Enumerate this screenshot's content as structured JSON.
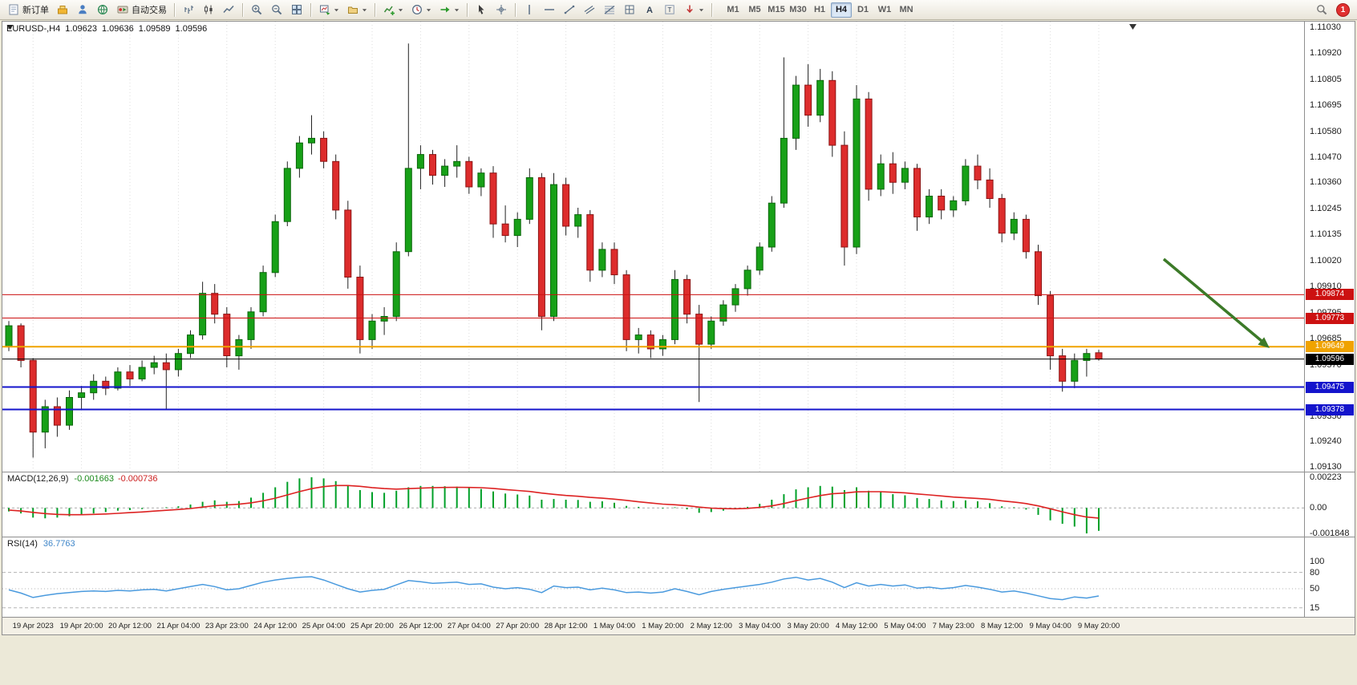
{
  "toolbar": {
    "new_order_label": "新订单",
    "autotrade_label": "自动交易",
    "text_tool_glyph": "A",
    "label_tool_glyph": "T",
    "notification_count": "1",
    "timeframes": [
      {
        "label": "M1",
        "active": false
      },
      {
        "label": "M5",
        "active": false
      },
      {
        "label": "M15",
        "active": false
      },
      {
        "label": "M30",
        "active": false
      },
      {
        "label": "H1",
        "active": false
      },
      {
        "label": "H4",
        "active": true
      },
      {
        "label": "D1",
        "active": false
      },
      {
        "label": "W1",
        "active": false
      },
      {
        "label": "MN",
        "active": false
      }
    ]
  },
  "chart_header": {
    "symbol": "EURUSD-,H4",
    "open": "1.09623",
    "high": "1.09636",
    "low": "1.09589",
    "close": "1.09596"
  },
  "price_axis": {
    "max": 1.1103,
    "min": 1.0913,
    "ticks": [
      "1.11030",
      "1.10920",
      "1.10805",
      "1.10695",
      "1.10580",
      "1.10470",
      "1.10360",
      "1.10245",
      "1.10135",
      "1.10020",
      "1.09910",
      "1.09795",
      "1.09685",
      "1.09570",
      "1.09460",
      "1.09350",
      "1.09240",
      "1.09130"
    ]
  },
  "levels": [
    {
      "price": 1.09874,
      "label": "1.09874",
      "color": "#cc1111",
      "width": 1
    },
    {
      "price": 1.09773,
      "label": "1.09773",
      "color": "#cc1111",
      "width": 1
    },
    {
      "price": 1.09649,
      "label": "1.09649",
      "color": "#f0a300",
      "width": 2
    },
    {
      "price": 1.09596,
      "label": "1.09596",
      "color": "#000000",
      "width": 1
    },
    {
      "price": 1.09475,
      "label": "1.09475",
      "color": "#1414cc",
      "width": 2
    },
    {
      "price": 1.09378,
      "label": "1.09378",
      "color": "#1414cc",
      "width": 2
    }
  ],
  "annotation": {
    "type": "arrow",
    "direction": "down-right",
    "color": "#3c7a28"
  },
  "chart_data": {
    "type": "candlestick",
    "symbol": "EURUSD",
    "timeframe": "H4",
    "up_color": "#17a017",
    "down_color": "#dd2c2c",
    "x_ticks": [
      "19 Apr 2023",
      "19 Apr 20:00",
      "20 Apr 12:00",
      "21 Apr 04:00",
      "23 Apr 23:00",
      "24 Apr 12:00",
      "25 Apr 04:00",
      "25 Apr 20:00",
      "26 Apr 12:00",
      "27 Apr 04:00",
      "27 Apr 20:00",
      "28 Apr 12:00",
      "1 May 04:00",
      "1 May 20:00",
      "2 May 12:00",
      "3 May 04:00",
      "3 May 20:00",
      "4 May 12:00",
      "5 May 04:00",
      "7 May 23:00",
      "8 May 12:00",
      "9 May 04:00",
      "9 May 20:00"
    ],
    "candles": [
      [
        1.0965,
        1.0976,
        1.0963,
        1.0974
      ],
      [
        1.0974,
        1.0975,
        1.0956,
        1.0959
      ],
      [
        1.0959,
        1.096,
        1.0917,
        1.0928
      ],
      [
        1.0928,
        1.0942,
        1.0921,
        1.0939
      ],
      [
        1.0939,
        1.0943,
        1.0926,
        1.0931
      ],
      [
        1.0931,
        1.0946,
        1.0929,
        1.0943
      ],
      [
        1.0943,
        1.0948,
        1.0938,
        1.0945
      ],
      [
        1.0945,
        1.0953,
        1.0942,
        1.095
      ],
      [
        1.095,
        1.0952,
        1.0944,
        1.0947
      ],
      [
        1.0947,
        1.0956,
        1.0946,
        1.0954
      ],
      [
        1.0954,
        1.0957,
        1.0948,
        1.0951
      ],
      [
        1.0951,
        1.0959,
        1.095,
        1.0956
      ],
      [
        1.0956,
        1.0961,
        1.0953,
        1.0958
      ],
      [
        1.0958,
        1.0962,
        1.0938,
        1.0955
      ],
      [
        1.0955,
        1.0964,
        1.0952,
        1.0962
      ],
      [
        1.0962,
        1.0972,
        1.096,
        1.097
      ],
      [
        1.097,
        1.0993,
        1.0968,
        1.0988
      ],
      [
        1.0988,
        1.0992,
        1.0975,
        1.0979
      ],
      [
        1.0979,
        1.0982,
        1.0956,
        1.0961
      ],
      [
        1.0961,
        1.097,
        1.0955,
        1.0968
      ],
      [
        1.0968,
        1.0982,
        1.0964,
        1.098
      ],
      [
        1.098,
        1.1,
        1.0978,
        1.0997
      ],
      [
        1.0997,
        1.1022,
        1.0995,
        1.1019
      ],
      [
        1.1019,
        1.1045,
        1.1017,
        1.1042
      ],
      [
        1.1042,
        1.1056,
        1.1038,
        1.1053
      ],
      [
        1.1053,
        1.1065,
        1.1048,
        1.1055
      ],
      [
        1.1055,
        1.1058,
        1.1042,
        1.1045
      ],
      [
        1.1045,
        1.1048,
        1.102,
        1.1024
      ],
      [
        1.1024,
        1.1028,
        1.099,
        1.0995
      ],
      [
        1.0995,
        1.1,
        1.0962,
        1.0968
      ],
      [
        1.0968,
        1.0979,
        1.0964,
        1.0976
      ],
      [
        1.0976,
        1.0982,
        1.097,
        1.0978
      ],
      [
        1.0978,
        1.101,
        1.0976,
        1.1006
      ],
      [
        1.1006,
        1.1096,
        1.1004,
        1.1042
      ],
      [
        1.1042,
        1.1052,
        1.1033,
        1.1048
      ],
      [
        1.1048,
        1.105,
        1.1035,
        1.1039
      ],
      [
        1.1039,
        1.1046,
        1.1034,
        1.1043
      ],
      [
        1.1043,
        1.1052,
        1.1038,
        1.1045
      ],
      [
        1.1045,
        1.1047,
        1.1031,
        1.1034
      ],
      [
        1.1034,
        1.1042,
        1.103,
        1.104
      ],
      [
        1.104,
        1.1043,
        1.1012,
        1.1018
      ],
      [
        1.1018,
        1.1026,
        1.101,
        1.1013
      ],
      [
        1.1013,
        1.1023,
        1.1008,
        1.102
      ],
      [
        1.102,
        1.1042,
        1.1018,
        1.1038
      ],
      [
        1.1038,
        1.104,
        1.0972,
        1.0978
      ],
      [
        1.0978,
        1.104,
        1.0976,
        1.1035
      ],
      [
        1.1035,
        1.1038,
        1.1013,
        1.1017
      ],
      [
        1.1017,
        1.1025,
        1.1012,
        1.1022
      ],
      [
        1.1022,
        1.1024,
        1.0993,
        1.0998
      ],
      [
        1.0998,
        1.101,
        1.0995,
        1.1007
      ],
      [
        1.1007,
        1.101,
        1.0992,
        1.0996
      ],
      [
        1.0996,
        1.0998,
        1.0963,
        1.0968
      ],
      [
        1.0968,
        1.0973,
        1.0962,
        1.097
      ],
      [
        1.097,
        1.0972,
        1.096,
        1.0964
      ],
      [
        1.0964,
        1.097,
        1.0961,
        1.0968
      ],
      [
        1.0968,
        1.0998,
        1.0966,
        1.0994
      ],
      [
        1.0994,
        1.0996,
        1.0975,
        1.0979
      ],
      [
        1.0979,
        1.0983,
        1.0941,
        1.0966
      ],
      [
        1.0966,
        1.0978,
        1.0964,
        1.0976
      ],
      [
        1.0976,
        1.0985,
        1.0974,
        1.0983
      ],
      [
        1.0983,
        1.0992,
        1.098,
        1.099
      ],
      [
        1.099,
        1.1,
        1.0987,
        1.0998
      ],
      [
        1.0998,
        1.101,
        1.0996,
        1.1008
      ],
      [
        1.1008,
        1.103,
        1.1006,
        1.1027
      ],
      [
        1.1027,
        1.109,
        1.1025,
        1.1055
      ],
      [
        1.1055,
        1.1082,
        1.105,
        1.1078
      ],
      [
        1.1078,
        1.1087,
        1.106,
        1.1065
      ],
      [
        1.1065,
        1.1085,
        1.1062,
        1.108
      ],
      [
        1.108,
        1.1084,
        1.1047,
        1.1052
      ],
      [
        1.1052,
        1.1058,
        1.1,
        1.1008
      ],
      [
        1.1008,
        1.1078,
        1.1005,
        1.1072
      ],
      [
        1.1072,
        1.1075,
        1.1028,
        1.1033
      ],
      [
        1.1033,
        1.1048,
        1.103,
        1.1044
      ],
      [
        1.1044,
        1.1049,
        1.1031,
        1.1036
      ],
      [
        1.1036,
        1.1045,
        1.1033,
        1.1042
      ],
      [
        1.1042,
        1.1044,
        1.1015,
        1.1021
      ],
      [
        1.1021,
        1.1033,
        1.1018,
        1.103
      ],
      [
        1.103,
        1.1033,
        1.102,
        1.1024
      ],
      [
        1.1024,
        1.103,
        1.1021,
        1.1028
      ],
      [
        1.1028,
        1.1046,
        1.1026,
        1.1043
      ],
      [
        1.1043,
        1.1048,
        1.1033,
        1.1037
      ],
      [
        1.1037,
        1.1042,
        1.1025,
        1.1029
      ],
      [
        1.1029,
        1.1031,
        1.101,
        1.1014
      ],
      [
        1.1014,
        1.1023,
        1.1011,
        1.102
      ],
      [
        1.102,
        1.1022,
        1.1003,
        1.1006
      ],
      [
        1.1006,
        1.1009,
        1.0983,
        1.0987
      ],
      [
        1.0987,
        1.0989,
        1.0955,
        1.0961
      ],
      [
        1.0961,
        1.0964,
        1.09455,
        1.095
      ],
      [
        1.095,
        1.0962,
        1.0947,
        1.0959
      ],
      [
        1.0959,
        1.0964,
        1.0952,
        1.0962
      ],
      [
        1.09623,
        1.09636,
        1.09589,
        1.09596
      ]
    ]
  },
  "macd": {
    "title": "MACD(12,26,9)",
    "value_main": "-0.001663",
    "value_signal": "-0.000736",
    "scale": {
      "max": 0.00223,
      "min": -0.001848,
      "labels": [
        "0.00223",
        "0.00",
        "-0.001848"
      ]
    },
    "histogram": [
      -0.00025,
      -0.0004,
      -0.0007,
      -0.00075,
      -0.0007,
      -0.0006,
      -0.0005,
      -0.0004,
      -0.0003,
      -0.0002,
      -0.00015,
      -8e-05,
      0.0,
      5e-05,
      0.00012,
      0.00025,
      0.00045,
      0.00055,
      0.00045,
      0.0005,
      0.00075,
      0.0011,
      0.0015,
      0.0019,
      0.00215,
      0.00223,
      0.00215,
      0.00195,
      0.00165,
      0.0013,
      0.00115,
      0.0011,
      0.00125,
      0.0015,
      0.0016,
      0.0016,
      0.00158,
      0.00155,
      0.00145,
      0.00138,
      0.0012,
      0.00105,
      0.00098,
      0.0009,
      0.0006,
      0.00065,
      0.0006,
      0.00058,
      0.00045,
      0.00048,
      0.00038,
      0.00015,
      8e-05,
      0.0,
      -5e-05,
      5e-05,
      -0.0001,
      -0.00035,
      -0.0003,
      -0.0002,
      -8e-05,
      8e-05,
      0.0003,
      0.0006,
      0.001,
      0.00135,
      0.0015,
      0.0016,
      0.00155,
      0.0013,
      0.0015,
      0.00125,
      0.00115,
      0.001,
      0.00092,
      0.00072,
      0.00065,
      0.00055,
      0.0005,
      0.00055,
      0.00048,
      0.00035,
      0.00012,
      5e-05,
      -0.00012,
      -0.0005,
      -0.0009,
      -0.00115,
      -0.00135,
      -0.001848,
      -0.001663
    ],
    "signal": [
      -0.00015,
      -0.00022,
      -0.00032,
      -0.00041,
      -0.00047,
      -0.00049,
      -0.00049,
      -0.00047,
      -0.00044,
      -0.00039,
      -0.00034,
      -0.00029,
      -0.00023,
      -0.00017,
      -0.00011,
      -4e-05,
      6e-05,
      0.00016,
      0.00022,
      0.00027,
      0.00037,
      0.00052,
      0.00071,
      0.00095,
      0.00119,
      0.0014,
      0.00155,
      0.00163,
      0.00163,
      0.00157,
      0.00148,
      0.00141,
      0.00137,
      0.0014,
      0.00144,
      0.00147,
      0.00149,
      0.0015,
      0.00149,
      0.00147,
      0.00142,
      0.00134,
      0.00127,
      0.0012,
      0.00108,
      0.00099,
      0.00091,
      0.00085,
      0.00077,
      0.00071,
      0.00064,
      0.00055,
      0.00045,
      0.00036,
      0.00028,
      0.00023,
      0.00017,
      6e-05,
      -1e-05,
      -5e-05,
      -6e-05,
      -3e-05,
      4e-05,
      0.00015,
      0.00032,
      0.00053,
      0.00072,
      0.0009,
      0.00103,
      0.00108,
      0.00117,
      0.00118,
      0.00118,
      0.00114,
      0.0011,
      0.00102,
      0.00095,
      0.00087,
      0.00079,
      0.00074,
      0.00069,
      0.00062,
      0.00052,
      0.00043,
      0.00032,
      0.00015,
      -6e-05,
      -0.00028,
      -0.00049,
      -0.00066,
      -0.000736
    ]
  },
  "rsi": {
    "title": "RSI(14)",
    "value": "36.7763",
    "scale_labels": [
      "100",
      "80",
      "50",
      "15"
    ],
    "levels": [
      80,
      50,
      15
    ],
    "series": [
      48,
      42,
      34,
      38,
      41,
      43,
      45,
      46,
      45,
      47,
      46,
      48,
      49,
      46,
      50,
      54,
      58,
      54,
      48,
      50,
      56,
      62,
      66,
      69,
      71,
      72,
      66,
      58,
      50,
      44,
      47,
      49,
      57,
      65,
      63,
      60,
      61,
      62,
      58,
      59,
      53,
      50,
      52,
      49,
      43,
      55,
      52,
      53,
      48,
      51,
      48,
      43,
      44,
      42,
      44,
      50,
      45,
      39,
      45,
      49,
      52,
      55,
      58,
      62,
      68,
      71,
      66,
      69,
      62,
      52,
      61,
      55,
      58,
      55,
      57,
      51,
      53,
      50,
      52,
      56,
      53,
      49,
      44,
      46,
      42,
      37,
      32,
      30,
      35,
      33,
      36.78
    ]
  }
}
